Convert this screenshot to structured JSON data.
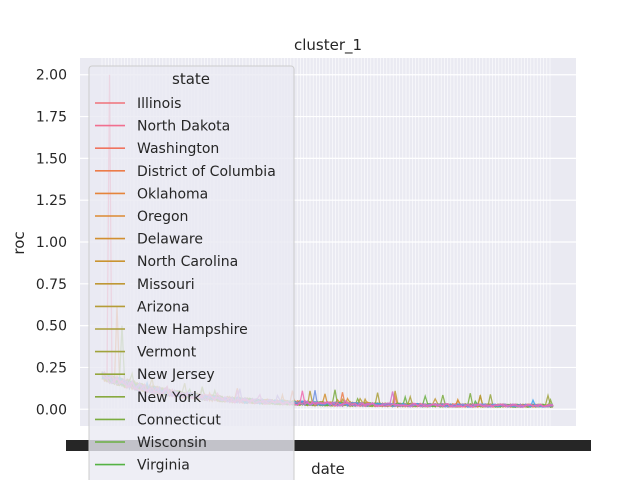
{
  "colors": {
    "axes_bg": "#eaeaf2",
    "grid": "#ffffff",
    "legend_bg": "#eaeaf2",
    "legend_border": "#cccccc"
  },
  "chart_data": {
    "type": "line",
    "title": "cluster_1",
    "xlabel": "date",
    "ylabel": "roc",
    "ylim": [
      -0.1,
      2.1
    ],
    "yticks": [
      "0.00",
      "0.25",
      "0.50",
      "0.75",
      "1.00",
      "1.25",
      "1.50",
      "1.75",
      "2.00"
    ],
    "grid": true,
    "x_tick_labels_note": "dense overlapping date tick labels (unreadable)",
    "legend": {
      "title": "state",
      "placement": "upper-left",
      "entries": [
        {
          "name": "Illinois",
          "color": "#f0727a"
        },
        {
          "name": "North Dakota",
          "color": "#f16f8f"
        },
        {
          "name": "Washington",
          "color": "#f0745f"
        },
        {
          "name": "District of Columbia",
          "color": "#ec7c4a"
        },
        {
          "name": "Oklahoma",
          "color": "#e5843b"
        },
        {
          "name": "Oregon",
          "color": "#dc8a33"
        },
        {
          "name": "Delaware",
          "color": "#d28f30"
        },
        {
          "name": "North Carolina",
          "color": "#c99431"
        },
        {
          "name": "Missouri",
          "color": "#bf9835"
        },
        {
          "name": "Arizona",
          "color": "#b59c37"
        },
        {
          "name": "New Hampshire",
          "color": "#aba03a"
        },
        {
          "name": "Vermont",
          "color": "#a0a33c"
        },
        {
          "name": "New Jersey",
          "color": "#95a63e"
        },
        {
          "name": "New York",
          "color": "#88a93f"
        },
        {
          "name": "Connecticut",
          "color": "#7bac40"
        },
        {
          "name": "Wisconsin",
          "color": "#6aaf42"
        },
        {
          "name": "Virginia",
          "color": "#55b244"
        }
      ]
    }
  }
}
